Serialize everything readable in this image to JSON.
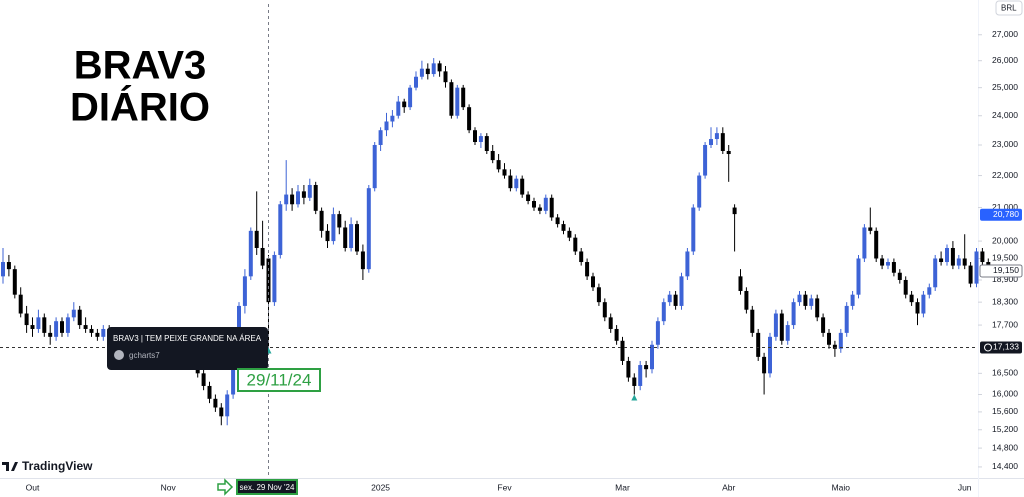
{
  "chart_data": {
    "type": "candlestick",
    "title": "BRAV3",
    "subtitle": "DIÁRIO",
    "currency": "BRL",
    "brand": "TradingView",
    "log_scale": true,
    "grid": false,
    "up_color": "#3d63d6",
    "down_color": "#000000",
    "ylim": [
      14170,
      28400
    ],
    "yticks": [
      {
        "value": 27000,
        "label": "27,000"
      },
      {
        "value": 26000,
        "label": "26,000"
      },
      {
        "value": 25000,
        "label": "25,000"
      },
      {
        "value": 24000,
        "label": "24,000"
      },
      {
        "value": 23000,
        "label": "23,000"
      },
      {
        "value": 22000,
        "label": "22,000"
      },
      {
        "value": 21000,
        "label": "21,000"
      },
      {
        "value": 20000,
        "label": "20,000"
      },
      {
        "value": 19500,
        "label": "19,500"
      },
      {
        "value": 18900,
        "label": "18,900"
      },
      {
        "value": 18300,
        "label": "18,300"
      },
      {
        "value": 17700,
        "label": "17,700"
      },
      {
        "value": 16500,
        "label": "16,500"
      },
      {
        "value": 16000,
        "label": "16,000"
      },
      {
        "value": 15600,
        "label": "15,600"
      },
      {
        "value": 15200,
        "label": "15,200"
      },
      {
        "value": 14800,
        "label": "14,800"
      },
      {
        "value": 14400,
        "label": "14,400"
      }
    ],
    "price_labels": [
      {
        "value": 20780,
        "label": "20,780"
      },
      {
        "value": 19150,
        "label": "19,150"
      },
      {
        "value": 17133,
        "label": "17,133"
      }
    ],
    "crosshair_date": "sex. 29 Nov '24",
    "annotation": "29/11/24",
    "tooltip": {
      "title": "BRAV3 | TEM PEIXE GRANDE NA ÁREA",
      "author": "gcharts7"
    },
    "categories": [
      null,
      null,
      null,
      null,
      null,
      "Out",
      null,
      null,
      null,
      null,
      null,
      null,
      null,
      null,
      null,
      null,
      null,
      null,
      null,
      null,
      null,
      null,
      null,
      null,
      null,
      null,
      null,
      null,
      "Nov",
      null,
      null,
      null,
      null,
      null,
      null,
      null,
      null,
      null,
      null,
      null,
      null,
      null,
      null,
      null,
      null,
      null,
      null,
      null,
      null,
      null,
      null,
      null,
      null,
      null,
      null,
      null,
      null,
      null,
      null,
      null,
      null,
      null,
      null,
      null,
      "2025",
      null,
      null,
      null,
      null,
      null,
      null,
      null,
      null,
      null,
      null,
      null,
      null,
      null,
      null,
      null,
      null,
      null,
      null,
      null,
      null,
      "Fev",
      null,
      null,
      null,
      null,
      null,
      null,
      null,
      null,
      null,
      null,
      null,
      null,
      null,
      null,
      null,
      null,
      null,
      null,
      null,
      "Mar",
      null,
      null,
      null,
      null,
      null,
      null,
      null,
      null,
      null,
      null,
      null,
      null,
      null,
      null,
      null,
      null,
      null,
      "Abr",
      null,
      null,
      null,
      null,
      null,
      null,
      null,
      null,
      null,
      null,
      null,
      null,
      null,
      null,
      null,
      null,
      null,
      null,
      "Maio",
      null,
      null,
      null,
      null,
      null,
      null,
      null,
      null,
      null,
      null,
      null,
      null,
      null,
      null,
      null,
      null,
      null,
      null,
      null,
      null,
      "Jun",
      null,
      null,
      null,
      null
    ],
    "ohlc": [
      [
        19000,
        19800,
        18800,
        19400
      ],
      [
        19400,
        19600,
        19000,
        19200
      ],
      [
        19200,
        19300,
        18400,
        18500
      ],
      [
        18500,
        18700,
        17900,
        18000
      ],
      [
        18000,
        18200,
        17500,
        17700
      ],
      [
        17700,
        17900,
        17400,
        17600
      ],
      [
        17600,
        18100,
        17500,
        17900
      ],
      [
        17900,
        18000,
        17400,
        17500
      ],
      [
        17500,
        17700,
        17200,
        17400
      ],
      [
        17400,
        17900,
        17300,
        17800
      ],
      [
        17800,
        17900,
        17400,
        17500
      ],
      [
        17500,
        18000,
        17400,
        17900
      ],
      [
        17900,
        18300,
        17800,
        18100
      ],
      [
        18100,
        18200,
        17600,
        17700
      ],
      [
        17700,
        17900,
        17500,
        17600
      ],
      [
        17600,
        17700,
        17400,
        17500
      ],
      [
        17500,
        17600,
        17300,
        17400
      ],
      [
        17400,
        17700,
        17300,
        17600
      ],
      [
        17600,
        17700,
        17200,
        17300
      ],
      [
        17300,
        17400,
        17000,
        17200
      ],
      [
        17200,
        17600,
        17100,
        17500
      ],
      [
        17500,
        17600,
        17200,
        17300
      ],
      [
        17300,
        17400,
        17000,
        17100
      ],
      [
        17100,
        17200,
        16900,
        17000
      ],
      [
        17000,
        17300,
        16900,
        17200
      ],
      [
        17200,
        17500,
        17100,
        17400
      ],
      [
        17400,
        17500,
        17000,
        17100
      ],
      [
        17100,
        17200,
        16900,
        17000
      ],
      [
        17000,
        17100,
        16700,
        16900
      ],
      [
        16900,
        17200,
        16800,
        17100
      ],
      [
        17100,
        17200,
        16700,
        16800
      ],
      [
        16800,
        17000,
        16700,
        16900
      ],
      [
        16900,
        17000,
        16600,
        16700
      ],
      [
        16700,
        16800,
        16400,
        16500
      ],
      [
        16500,
        16600,
        16100,
        16200
      ],
      [
        16200,
        16300,
        15800,
        15900
      ],
      [
        15900,
        16000,
        15600,
        15700
      ],
      [
        15700,
        15800,
        15300,
        15500
      ],
      [
        15500,
        16100,
        15300,
        16000
      ],
      [
        16000,
        17100,
        15900,
        17000
      ],
      [
        17000,
        18300,
        16900,
        18200
      ],
      [
        18200,
        19200,
        18000,
        19000
      ],
      [
        19000,
        20400,
        18900,
        20300
      ],
      [
        20300,
        21500,
        19600,
        19800
      ],
      [
        19800,
        20600,
        19200,
        19300
      ],
      [
        19500,
        19600,
        17100,
        18300
      ],
      [
        18300,
        19700,
        18200,
        19600
      ],
      [
        19600,
        21200,
        19500,
        21100
      ],
      [
        21100,
        22500,
        20900,
        21400
      ],
      [
        21400,
        21600,
        20900,
        21100
      ],
      [
        21100,
        21700,
        21000,
        21500
      ],
      [
        21500,
        21700,
        21100,
        21300
      ],
      [
        21300,
        21900,
        21200,
        21700
      ],
      [
        21700,
        21800,
        20800,
        20900
      ],
      [
        20900,
        21000,
        20100,
        20300
      ],
      [
        20300,
        20500,
        19800,
        20000
      ],
      [
        20000,
        21000,
        19900,
        20800
      ],
      [
        20800,
        20900,
        20200,
        20400
      ],
      [
        20400,
        20600,
        19700,
        19800
      ],
      [
        19800,
        20700,
        19700,
        20500
      ],
      [
        20500,
        20600,
        19600,
        19700
      ],
      [
        19700,
        19900,
        18900,
        19200
      ],
      [
        19200,
        21700,
        19100,
        21600
      ],
      [
        21600,
        23100,
        21500,
        23000
      ],
      [
        23000,
        23600,
        22800,
        23500
      ],
      [
        23500,
        24100,
        23300,
        23800
      ],
      [
        23800,
        24200,
        23600,
        24000
      ],
      [
        24000,
        24700,
        23900,
        24500
      ],
      [
        24500,
        24600,
        24100,
        24300
      ],
      [
        24300,
        25100,
        24200,
        25000
      ],
      [
        25000,
        25600,
        24900,
        25400
      ],
      [
        25400,
        26000,
        25300,
        25700
      ],
      [
        25700,
        25900,
        25300,
        25500
      ],
      [
        25500,
        26100,
        25400,
        25900
      ],
      [
        25900,
        26000,
        25400,
        25600
      ],
      [
        25600,
        25800,
        25000,
        25200
      ],
      [
        25200,
        25300,
        23900,
        24000
      ],
      [
        24000,
        25100,
        23900,
        25000
      ],
      [
        25000,
        25100,
        24200,
        24300
      ],
      [
        24300,
        24400,
        23400,
        23500
      ],
      [
        23500,
        23600,
        23000,
        23100
      ],
      [
        23100,
        23400,
        22900,
        23300
      ],
      [
        23300,
        23400,
        22700,
        22800
      ],
      [
        22800,
        23000,
        22400,
        22500
      ],
      [
        22500,
        22700,
        22100,
        22200
      ],
      [
        22200,
        22400,
        21900,
        22000
      ],
      [
        22000,
        22200,
        21500,
        21600
      ],
      [
        21600,
        22000,
        21500,
        21900
      ],
      [
        21900,
        22000,
        21300,
        21400
      ],
      [
        21400,
        21500,
        21100,
        21200
      ],
      [
        21200,
        21300,
        20900,
        21000
      ],
      [
        21000,
        21100,
        20800,
        20900
      ],
      [
        20900,
        21400,
        20800,
        21300
      ],
      [
        21300,
        21400,
        20600,
        20700
      ],
      [
        20700,
        20800,
        20400,
        20500
      ],
      [
        20500,
        20600,
        20200,
        20300
      ],
      [
        20300,
        20400,
        20000,
        20100
      ],
      [
        20100,
        20200,
        19600,
        19700
      ],
      [
        19700,
        19800,
        19300,
        19400
      ],
      [
        19400,
        19500,
        18900,
        19000
      ],
      [
        19000,
        19100,
        18600,
        18700
      ],
      [
        18700,
        18800,
        18200,
        18300
      ],
      [
        18300,
        18400,
        17800,
        17900
      ],
      [
        17900,
        18000,
        17500,
        17600
      ],
      [
        17600,
        17700,
        17200,
        17300
      ],
      [
        17300,
        17400,
        16700,
        16800
      ],
      [
        16800,
        16900,
        16300,
        16400
      ],
      [
        16400,
        16500,
        16000,
        16200
      ],
      [
        16200,
        16800,
        16100,
        16700
      ],
      [
        16700,
        16800,
        16400,
        16600
      ],
      [
        16600,
        17300,
        16500,
        17200
      ],
      [
        17200,
        17900,
        17100,
        17800
      ],
      [
        17800,
        18400,
        17700,
        18300
      ],
      [
        18300,
        18600,
        18200,
        18500
      ],
      [
        18500,
        18600,
        18100,
        18200
      ],
      [
        18200,
        19100,
        18100,
        19000
      ],
      [
        19000,
        19800,
        18900,
        19700
      ],
      [
        19700,
        21100,
        19600,
        21000
      ],
      [
        21000,
        22100,
        20900,
        22000
      ],
      [
        22000,
        23100,
        21900,
        23000
      ],
      [
        23000,
        23600,
        22900,
        23200
      ],
      [
        23200,
        23600,
        23000,
        23400
      ],
      [
        23400,
        23600,
        22700,
        22800
      ],
      [
        22800,
        23000,
        21800,
        22700
      ],
      [
        21000,
        21100,
        19700,
        20800
      ],
      [
        19000,
        19200,
        18500,
        18600
      ],
      [
        18600,
        18700,
        18000,
        18100
      ],
      [
        18100,
        18200,
        17400,
        17500
      ],
      [
        17500,
        17600,
        16800,
        16900
      ],
      [
        16900,
        17000,
        16000,
        16500
      ],
      [
        16500,
        17500,
        16400,
        17400
      ],
      [
        17400,
        18100,
        17300,
        18000
      ],
      [
        18000,
        18100,
        17200,
        17300
      ],
      [
        17300,
        17800,
        17200,
        17700
      ],
      [
        17700,
        18400,
        17600,
        18300
      ],
      [
        18300,
        18600,
        18200,
        18500
      ],
      [
        18500,
        18600,
        18100,
        18200
      ],
      [
        18200,
        18500,
        18100,
        18400
      ],
      [
        18400,
        18500,
        17800,
        17900
      ],
      [
        17900,
        18000,
        17400,
        17500
      ],
      [
        17500,
        17600,
        17100,
        17200
      ],
      [
        17200,
        17300,
        16900,
        17100
      ],
      [
        17100,
        17600,
        17000,
        17500
      ],
      [
        17500,
        18300,
        17400,
        18200
      ],
      [
        18200,
        18600,
        18100,
        18500
      ],
      [
        18500,
        19600,
        18400,
        19500
      ],
      [
        19500,
        20500,
        19400,
        20400
      ],
      [
        20400,
        21000,
        20200,
        20300
      ],
      [
        20300,
        20400,
        19400,
        19500
      ],
      [
        19500,
        19600,
        19200,
        19300
      ],
      [
        19300,
        19500,
        19200,
        19400
      ],
      [
        19400,
        19500,
        19000,
        19100
      ],
      [
        19100,
        19200,
        18800,
        18900
      ],
      [
        18900,
        19000,
        18400,
        18500
      ],
      [
        18500,
        18600,
        18200,
        18300
      ],
      [
        18300,
        18400,
        17700,
        18000
      ],
      [
        18000,
        18600,
        17900,
        18500
      ],
      [
        18500,
        18800,
        18400,
        18700
      ],
      [
        18700,
        19600,
        18600,
        19500
      ],
      [
        19500,
        19700,
        19300,
        19400
      ],
      [
        19400,
        19900,
        19300,
        19800
      ],
      [
        19800,
        20000,
        19200,
        19300
      ],
      [
        19300,
        19600,
        19200,
        19500
      ],
      [
        19500,
        20200,
        19200,
        19300
      ],
      [
        19300,
        19400,
        18700,
        18800
      ],
      [
        18800,
        19800,
        18700,
        19700
      ],
      [
        19700,
        19800,
        19300,
        19400
      ],
      [
        19400,
        19500,
        19000,
        19150
      ]
    ]
  }
}
